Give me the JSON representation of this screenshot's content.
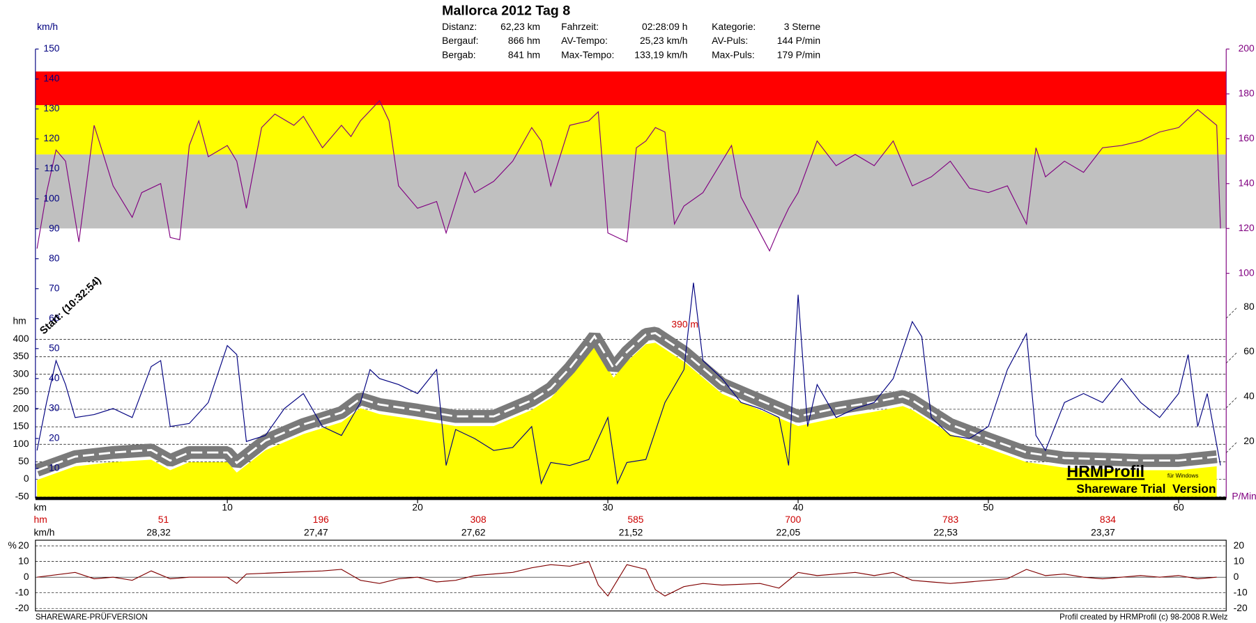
{
  "header": {
    "title": "Mallorca 2012 Tag 8",
    "stats": [
      [
        "Distanz:",
        "62,23 km"
      ],
      [
        "Bergauf:",
        "866 hm"
      ],
      [
        "Bergab:",
        "841 hm"
      ],
      [
        "Fahrzeit:",
        "02:28:09 h"
      ],
      [
        "AV-Tempo:",
        "25,23 km/h"
      ],
      [
        "Max-Tempo:",
        "133,19 km/h"
      ],
      [
        "Kategorie:",
        "3 Sterne"
      ],
      [
        "AV-Puls:",
        "144 P/min"
      ],
      [
        "Max-Puls:",
        "179 P/min"
      ]
    ]
  },
  "chart_data": [
    {
      "type": "line",
      "x_label": "km",
      "y_label": "km/h",
      "y2_label": "P/Min",
      "xlim": [
        0,
        62.5
      ],
      "xticks": [
        10,
        20,
        30,
        40,
        50,
        60
      ],
      "ylim": [
        0,
        150
      ],
      "yticks": [
        10,
        20,
        30,
        40,
        50,
        60,
        70,
        80,
        90,
        100,
        110,
        120,
        130,
        140,
        150
      ],
      "y2lim": [
        0,
        200
      ],
      "y2ticks": [
        100,
        120,
        140,
        160,
        180,
        200
      ],
      "zones": [
        {
          "from": 175,
          "to": 190,
          "color": "#ff0000"
        },
        {
          "from": 153,
          "to": 175,
          "color": "#ffff00"
        },
        {
          "from": 120,
          "to": 153,
          "color": "#c0c0c0"
        }
      ],
      "annotation": "Start: (10:32:54)",
      "series": [
        {
          "color": "#000080",
          "x": [
            0,
            0.5,
            1,
            1.5,
            2,
            3,
            4,
            5,
            6,
            6.5,
            7,
            8,
            9,
            10,
            10.5,
            11,
            12,
            13,
            14,
            15,
            16,
            17,
            17.5,
            18,
            19,
            20,
            21,
            21.5,
            22,
            23,
            24,
            25,
            26,
            26.5,
            27,
            28,
            29,
            30,
            30.5,
            31,
            32,
            33,
            34,
            34.5,
            35,
            36,
            37,
            38,
            39,
            39.5,
            40,
            40.5,
            41,
            42,
            43,
            44,
            45,
            46,
            46.5,
            47,
            48,
            49,
            50,
            51,
            52,
            52.5,
            53,
            54,
            55,
            56,
            57,
            58,
            59,
            60,
            60.5,
            61,
            61.5,
            62.2
          ],
          "values": [
            16,
            32,
            46,
            38,
            27,
            28,
            30,
            27,
            44,
            46,
            24,
            25,
            32,
            51,
            48,
            19,
            21,
            30,
            35,
            24,
            21,
            32,
            43,
            40,
            38,
            35,
            43,
            11,
            23,
            20,
            16,
            17,
            24,
            5,
            12,
            11,
            13,
            27,
            5,
            12,
            13,
            32,
            43,
            72,
            46,
            40,
            32,
            30,
            27,
            11,
            68,
            24,
            38,
            27,
            30,
            32,
            40,
            59,
            54,
            27,
            21,
            20,
            24,
            43,
            55,
            21,
            16,
            32,
            35,
            32,
            40,
            32,
            27,
            35,
            48,
            24,
            35,
            11
          ]
        },
        {
          "color": "#800080",
          "axis": "y2",
          "x": [
            0,
            0.5,
            1,
            1.5,
            2.2,
            3,
            4,
            5,
            5.5,
            6.5,
            7,
            7.5,
            8,
            8.5,
            9,
            10,
            10.5,
            11,
            11.8,
            12.5,
            13.5,
            14,
            15,
            16,
            16.5,
            17,
            18,
            18.5,
            19,
            20,
            21,
            21.5,
            22.5,
            23,
            24,
            25,
            26,
            26.5,
            27,
            28,
            29,
            29.5,
            30,
            30.5,
            31,
            31.5,
            32,
            32.5,
            33,
            33.5,
            34,
            35,
            36,
            36.5,
            37,
            38,
            38.5,
            39,
            39.5,
            40,
            41,
            42,
            43,
            44,
            45,
            46,
            47,
            48,
            49,
            50,
            51,
            52,
            52.5,
            53,
            54,
            55,
            56,
            57,
            58,
            59,
            60,
            61,
            62,
            62.2
          ],
          "values": [
            111,
            136,
            155,
            150,
            114,
            166,
            139,
            125,
            136,
            140,
            116,
            115,
            157,
            168,
            152,
            157,
            150,
            129,
            165,
            171,
            166,
            170,
            156,
            166,
            161,
            168,
            177,
            168,
            139,
            129,
            132,
            118,
            145,
            136,
            141,
            150,
            165,
            159,
            139,
            166,
            168,
            172,
            118,
            116,
            114,
            156,
            159,
            165,
            163,
            122,
            130,
            136,
            150,
            157,
            134,
            118,
            110,
            120,
            129,
            136,
            159,
            148,
            153,
            148,
            159,
            139,
            143,
            150,
            138,
            136,
            139,
            122,
            156,
            143,
            150,
            145,
            156,
            157,
            159,
            163,
            165,
            173,
            166,
            120
          ]
        }
      ]
    },
    {
      "type": "area",
      "y_label": "hm",
      "xlim": [
        0,
        62.5
      ],
      "ylim": [
        -50,
        400
      ],
      "yticks": [
        -50,
        0,
        50,
        100,
        150,
        200,
        250,
        300,
        350,
        400
      ],
      "y2lim": [
        0,
        80
      ],
      "y2ticks": [
        20,
        40,
        60,
        80
      ],
      "annotation": {
        "text": "390 m",
        "x": 32.5,
        "y": 390
      },
      "series": [
        {
          "color": "#ffff00",
          "x": [
            0,
            2,
            4,
            6,
            7,
            8,
            10,
            10.5,
            12,
            14,
            16,
            17,
            18,
            20,
            22,
            24,
            26,
            27,
            28,
            29,
            29.3,
            30.3,
            31,
            32,
            32.5,
            34,
            36,
            38,
            40,
            42,
            44,
            45.5,
            46,
            48,
            50,
            52,
            54,
            56,
            58,
            60,
            62
          ],
          "values": [
            -2,
            37,
            49,
            56,
            26,
            49,
            49,
            19,
            83,
            129,
            163,
            203,
            186,
            170,
            152,
            152,
            198,
            232,
            290,
            359,
            381,
            290,
            336,
            386,
            390,
            336,
            244,
            198,
            152,
            175,
            193,
            209,
            198,
            129,
            88,
            49,
            33,
            30,
            26,
            26,
            37
          ]
        }
      ]
    },
    {
      "type": "line",
      "y_label": "%",
      "xlim": [
        0,
        62.5
      ],
      "ylim": [
        -20,
        20
      ],
      "yticks": [
        -20,
        -10,
        0,
        10,
        20
      ],
      "series": [
        {
          "color": "#800000",
          "x": [
            0,
            2,
            3,
            4,
            5,
            6,
            7,
            8,
            10,
            10.5,
            11,
            13,
            15,
            16,
            17,
            18,
            19,
            20,
            21,
            22,
            23,
            25,
            26,
            27,
            28,
            29,
            29.5,
            30,
            31,
            32,
            32.5,
            33,
            34,
            35,
            36,
            38,
            39,
            40,
            41,
            42,
            43,
            44,
            45,
            46,
            47,
            48,
            49,
            50,
            51,
            52,
            53,
            54,
            55,
            56,
            57,
            58,
            59,
            60,
            61,
            62
          ],
          "values": [
            0,
            3,
            -1,
            0,
            -2,
            4,
            -1,
            0,
            0,
            -4,
            2,
            3,
            4,
            5,
            -2,
            -4,
            -1,
            0,
            -3,
            -2,
            1,
            3,
            6,
            8,
            7,
            10,
            -5,
            -12,
            8,
            5,
            -8,
            -12,
            -6,
            -4,
            -5,
            -4,
            -7,
            3,
            1,
            2,
            3,
            1,
            3,
            -2,
            -3,
            -4,
            -3,
            -2,
            -1,
            5,
            1,
            2,
            0,
            -1,
            0,
            1,
            0,
            1,
            -1,
            0
          ]
        }
      ]
    }
  ],
  "summary": {
    "hm_label": "hm",
    "hm": [
      "51",
      "196",
      "308",
      "585",
      "700",
      "783",
      "834"
    ],
    "kmh_label": "km/h",
    "kmh": [
      "28,32",
      "27,47",
      "27,62",
      "21,52",
      "22,05",
      "22,53",
      "23,37"
    ]
  },
  "logo": {
    "name": "HRMProfil",
    "sub": "für Windows",
    "trial": "Shareware Trial  Version"
  },
  "footer": {
    "left": "SHAREWARE-PRÜFVERSION",
    "right": "Profil created by HRMProfil (c) 98-2008 R.Welz"
  }
}
